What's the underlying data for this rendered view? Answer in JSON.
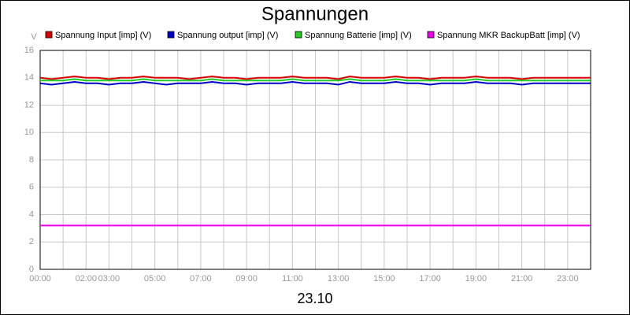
{
  "chart_data": {
    "type": "line",
    "title": "Spannungen",
    "ylabel": "V",
    "xlabel": "23.10",
    "x": [
      0,
      0.5,
      1,
      1.5,
      2,
      2.5,
      3,
      3.5,
      4,
      4.5,
      5,
      5.5,
      6,
      6.5,
      7,
      7.5,
      8,
      8.5,
      9,
      9.5,
      10,
      10.5,
      11,
      11.5,
      12,
      12.5,
      13,
      13.5,
      14,
      14.5,
      15,
      15.5,
      16,
      16.5,
      17,
      17.5,
      18,
      18.5,
      19,
      19.5,
      20,
      20.5,
      21,
      21.5,
      22,
      22.5,
      23,
      23.5,
      24
    ],
    "series": [
      {
        "name": "Spannung Input [imp] (V)",
        "color": "#dd0000",
        "values": [
          14.0,
          13.9,
          14.0,
          14.1,
          14.0,
          14.0,
          13.9,
          14.0,
          14.0,
          14.1,
          14.0,
          14.0,
          14.0,
          13.9,
          14.0,
          14.1,
          14.0,
          14.0,
          13.9,
          14.0,
          14.0,
          14.0,
          14.1,
          14.0,
          14.0,
          14.0,
          13.9,
          14.1,
          14.0,
          14.0,
          14.0,
          14.1,
          14.0,
          14.0,
          13.9,
          14.0,
          14.0,
          14.0,
          14.1,
          14.0,
          14.0,
          14.0,
          13.9,
          14.0,
          14.0,
          14.0,
          14.0,
          14.0,
          14.0
        ]
      },
      {
        "name": "Spannung output [imp] (V)",
        "color": "#0000cc",
        "values": [
          13.6,
          13.5,
          13.6,
          13.7,
          13.6,
          13.6,
          13.5,
          13.6,
          13.6,
          13.7,
          13.6,
          13.5,
          13.6,
          13.6,
          13.6,
          13.7,
          13.6,
          13.6,
          13.5,
          13.6,
          13.6,
          13.6,
          13.7,
          13.6,
          13.6,
          13.6,
          13.5,
          13.7,
          13.6,
          13.6,
          13.6,
          13.7,
          13.6,
          13.6,
          13.5,
          13.6,
          13.6,
          13.6,
          13.7,
          13.6,
          13.6,
          13.6,
          13.5,
          13.6,
          13.6,
          13.6,
          13.6,
          13.6,
          13.6
        ]
      },
      {
        "name": "Spannung Batterie [imp] (V)",
        "color": "#22cc22",
        "values": [
          13.8,
          13.8,
          13.8,
          13.9,
          13.8,
          13.8,
          13.8,
          13.8,
          13.8,
          13.9,
          13.8,
          13.8,
          13.8,
          13.8,
          13.8,
          13.9,
          13.8,
          13.8,
          13.8,
          13.8,
          13.8,
          13.8,
          13.9,
          13.8,
          13.8,
          13.8,
          13.8,
          13.9,
          13.8,
          13.8,
          13.8,
          13.9,
          13.8,
          13.8,
          13.8,
          13.8,
          13.8,
          13.8,
          13.9,
          13.8,
          13.8,
          13.8,
          13.8,
          13.8,
          13.8,
          13.8,
          13.8,
          13.8,
          13.8
        ]
      },
      {
        "name": "Spannung MKR BackupBatt [imp] (V)",
        "color": "#ee00ee",
        "values": [
          3.2,
          3.2,
          3.2,
          3.2,
          3.2,
          3.2,
          3.2,
          3.2,
          3.2,
          3.2,
          3.2,
          3.2,
          3.2,
          3.2,
          3.2,
          3.2,
          3.2,
          3.2,
          3.2,
          3.2,
          3.2,
          3.2,
          3.2,
          3.2,
          3.2,
          3.2,
          3.2,
          3.2,
          3.2,
          3.2,
          3.2,
          3.2,
          3.2,
          3.2,
          3.2,
          3.2,
          3.2,
          3.2,
          3.2,
          3.2,
          3.2,
          3.2,
          3.2,
          3.2,
          3.2,
          3.2,
          3.2,
          3.2,
          3.2
        ]
      }
    ],
    "xlim": [
      0,
      24
    ],
    "xticks": [
      {
        "value": 0,
        "label": "00:00"
      },
      {
        "value": 1,
        "label": null
      },
      {
        "value": 2,
        "label": "02:00"
      },
      {
        "value": 3,
        "label": "03:00"
      },
      {
        "value": 4,
        "label": null
      },
      {
        "value": 5,
        "label": "05:00"
      },
      {
        "value": 6,
        "label": null
      },
      {
        "value": 7,
        "label": "07:00"
      },
      {
        "value": 8,
        "label": null
      },
      {
        "value": 9,
        "label": "09:00"
      },
      {
        "value": 10,
        "label": null
      },
      {
        "value": 11,
        "label": "11:00"
      },
      {
        "value": 12,
        "label": null
      },
      {
        "value": 13,
        "label": "13:00"
      },
      {
        "value": 14,
        "label": null
      },
      {
        "value": 15,
        "label": "15:00"
      },
      {
        "value": 16,
        "label": null
      },
      {
        "value": 17,
        "label": "17:00"
      },
      {
        "value": 18,
        "label": null
      },
      {
        "value": 19,
        "label": "19:00"
      },
      {
        "value": 20,
        "label": null
      },
      {
        "value": 21,
        "label": "21:00"
      },
      {
        "value": 22,
        "label": null
      },
      {
        "value": 23,
        "label": "23:00"
      }
    ],
    "ylim": [
      0,
      16
    ],
    "yticks": [
      0,
      2,
      4,
      6,
      8,
      10,
      12,
      14,
      16
    ],
    "grid": true
  }
}
